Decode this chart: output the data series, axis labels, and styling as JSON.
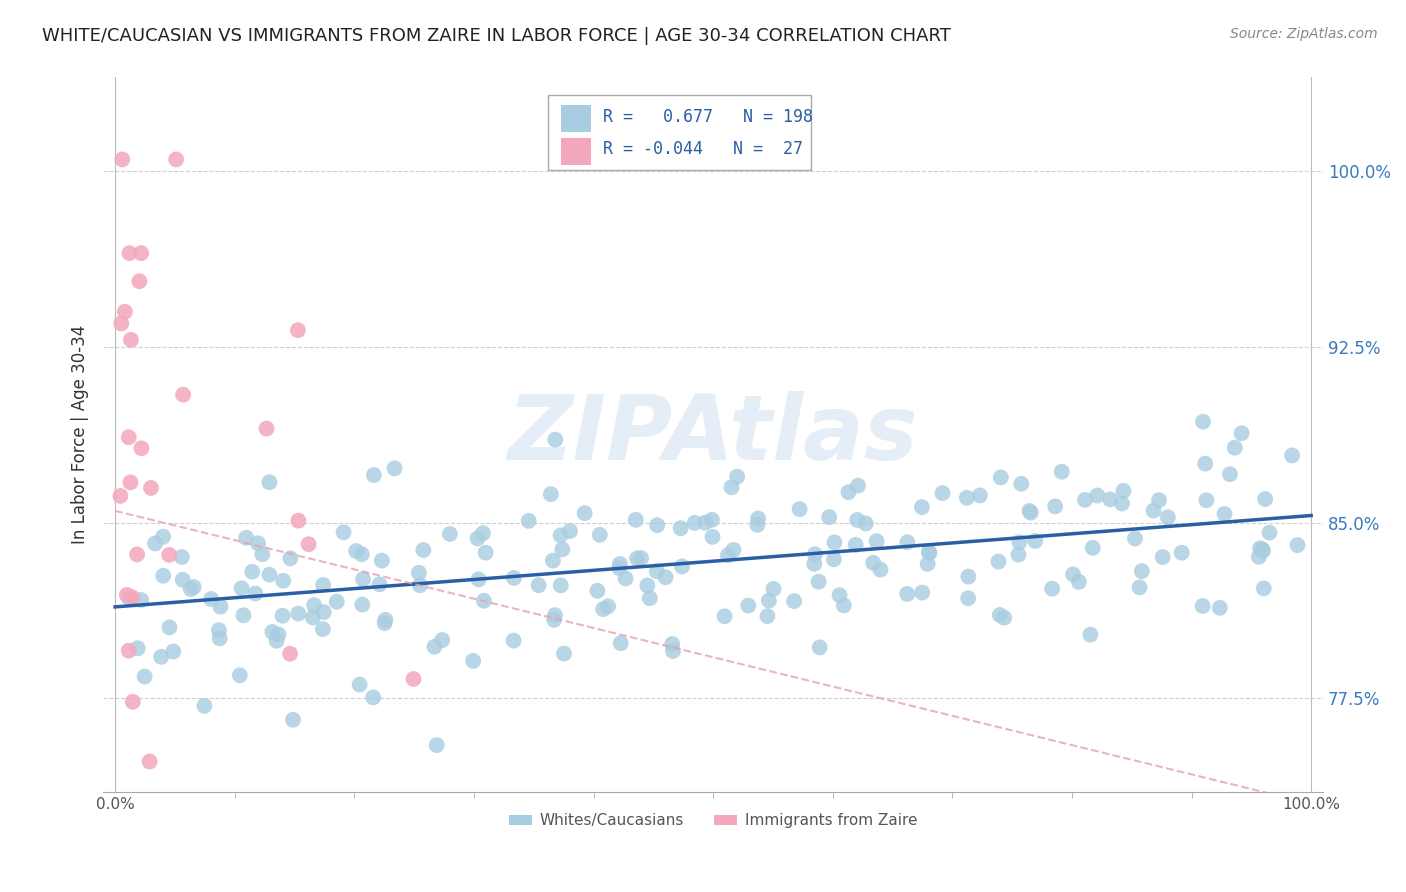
{
  "title": "WHITE/CAUCASIAN VS IMMIGRANTS FROM ZAIRE IN LABOR FORCE | AGE 30-34 CORRELATION CHART",
  "source": "Source: ZipAtlas.com",
  "ylabel": "In Labor Force | Age 30-34",
  "xlim": [
    -0.01,
    1.01
  ],
  "ylim": [
    0.735,
    1.04
  ],
  "yticks": [
    0.775,
    0.85,
    0.925,
    1.0
  ],
  "ytick_labels": [
    "77.5%",
    "85.0%",
    "92.5%",
    "100.0%"
  ],
  "xtick_positions": [
    0.0,
    1.0
  ],
  "xtick_labels": [
    "0.0%",
    "100.0%"
  ],
  "blue_R": 0.677,
  "blue_N": 198,
  "pink_R": -0.044,
  "pink_N": 27,
  "blue_dot_color": "#a8cce0",
  "pink_dot_color": "#f4a7bc",
  "blue_line_color": "#2b5fa5",
  "pink_line_color": "#e8a0b4",
  "legend_label_blue": "Whites/Caucasians",
  "legend_label_pink": "Immigrants from Zaire",
  "watermark": "ZIPAtlas",
  "background_color": "#ffffff",
  "grid_color": "#d0d0d0",
  "title_color": "#333333",
  "blue_line_x": [
    0.0,
    1.0
  ],
  "blue_line_y": [
    0.814,
    0.853
  ],
  "pink_line_x": [
    0.0,
    1.0
  ],
  "pink_line_y": [
    0.855,
    0.73
  ]
}
